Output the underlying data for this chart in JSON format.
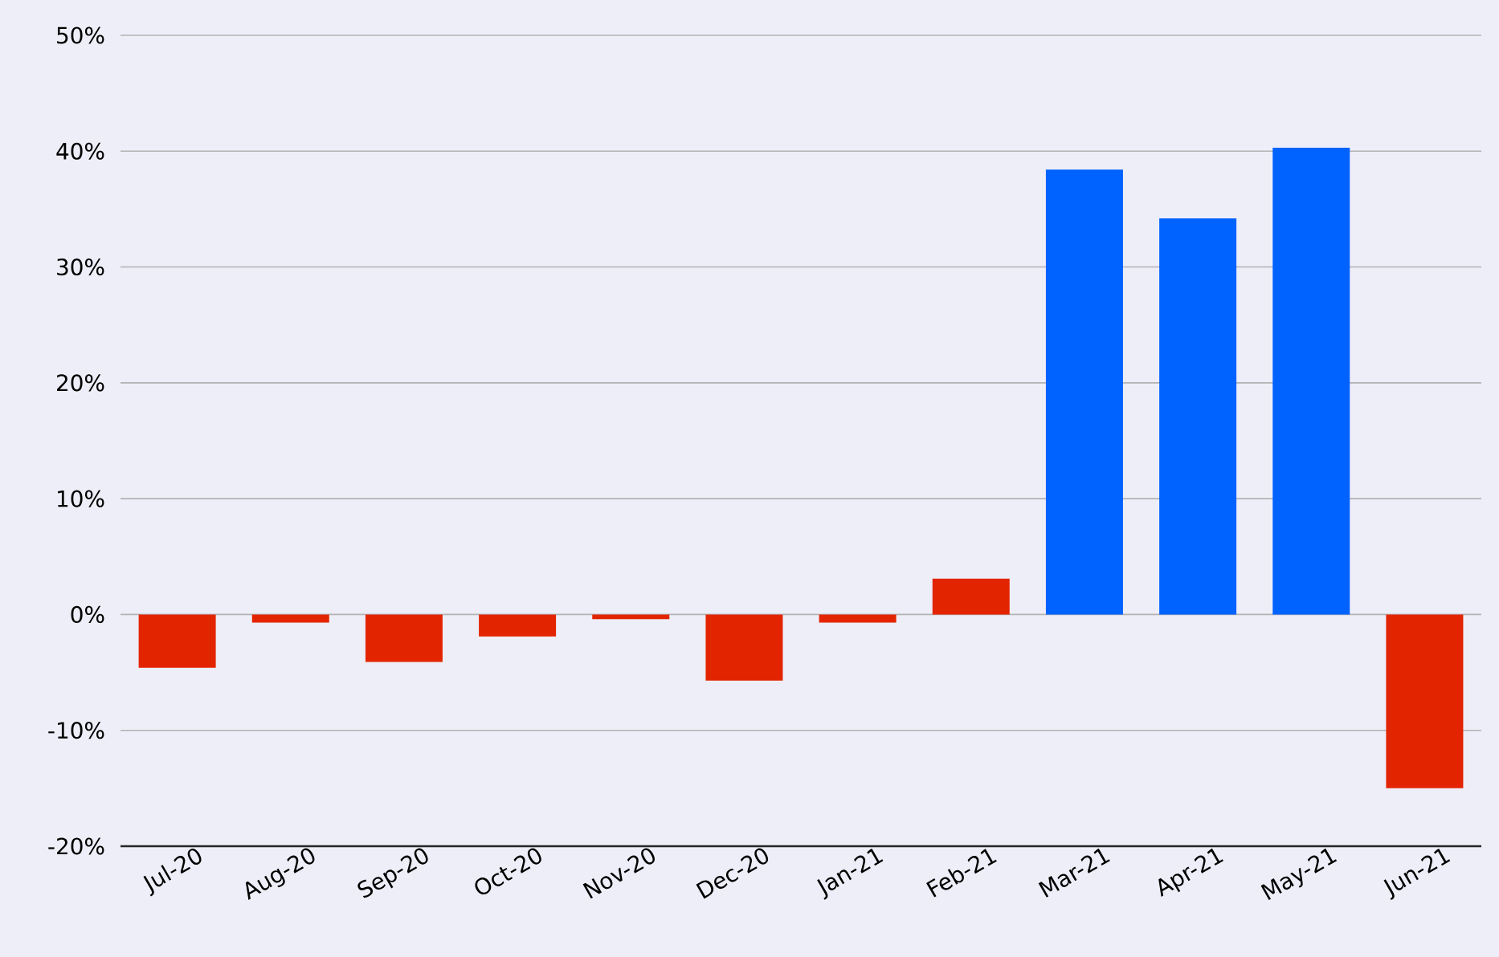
{
  "chart_data": {
    "type": "bar",
    "categories": [
      "Jul-20",
      "Aug-20",
      "Sep-20",
      "Oct-20",
      "Nov-20",
      "Dec-20",
      "Jan-21",
      "Feb-21",
      "Mar-21",
      "Apr-21",
      "May-21",
      "Jun-21"
    ],
    "values": [
      -4.6,
      -0.7,
      -4.1,
      -1.9,
      -0.4,
      -5.7,
      -0.7,
      3.1,
      38.4,
      34.2,
      40.3,
      -15.0
    ],
    "colors": [
      "#e32400",
      "#e32400",
      "#e32400",
      "#e32400",
      "#e32400",
      "#e32400",
      "#e32400",
      "#e32400",
      "#0062ff",
      "#0062ff",
      "#0062ff",
      "#e32400"
    ],
    "ylim": [
      -20,
      50
    ],
    "yticks": [
      {
        "value": -20,
        "label": "-20%"
      },
      {
        "value": -10,
        "label": "-10%"
      },
      {
        "value": 0,
        "label": "0%"
      },
      {
        "value": 10,
        "label": "10%"
      },
      {
        "value": 20,
        "label": "20%"
      },
      {
        "value": 30,
        "label": "30%"
      },
      {
        "value": 40,
        "label": "40%"
      },
      {
        "value": 50,
        "label": "50%"
      }
    ],
    "grid": "y"
  }
}
